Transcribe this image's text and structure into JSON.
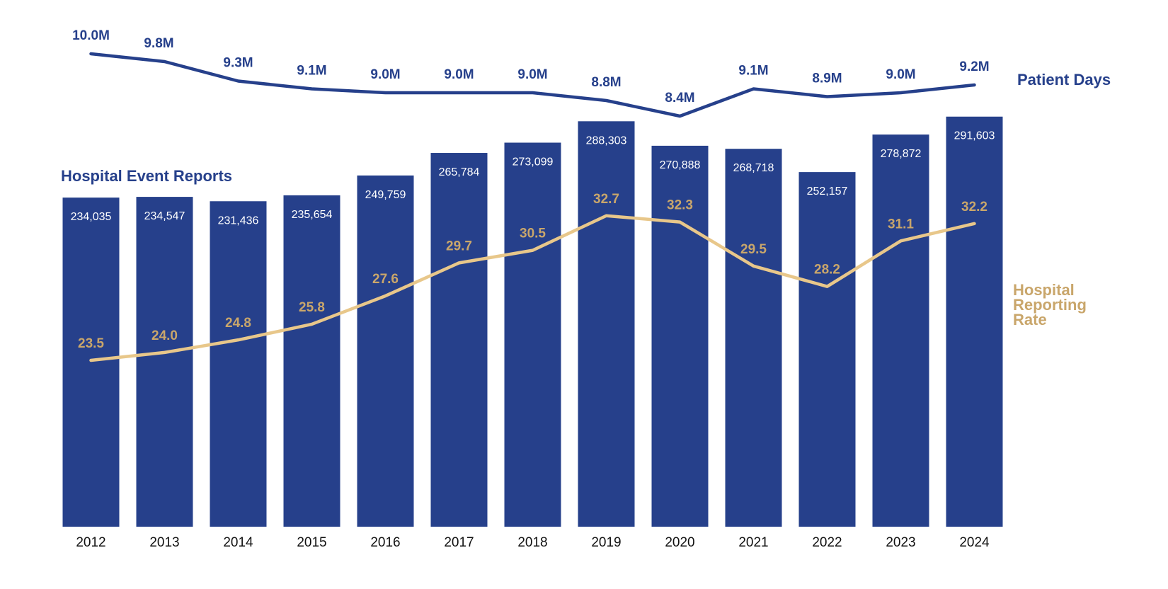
{
  "chart_data": {
    "type": "bar",
    "categories": [
      "2012",
      "2013",
      "2014",
      "2015",
      "2016",
      "2017",
      "2018",
      "2019",
      "2020",
      "2021",
      "2022",
      "2023",
      "2024"
    ],
    "series": [
      {
        "name": "Hospital Event Reports",
        "type": "bar",
        "values": [
          234035,
          234547,
          231436,
          235654,
          249759,
          265784,
          273099,
          288303,
          270888,
          268718,
          252157,
          278872,
          291603
        ],
        "labels": [
          "234,035",
          "234,547",
          "231,436",
          "235,654",
          "249,759",
          "265,784",
          "273,099",
          "288,303",
          "270,888",
          "268,718",
          "252,157",
          "278,872",
          "291,603"
        ],
        "color": "#26408b"
      },
      {
        "name": "Patient Days",
        "type": "line",
        "values": [
          10.0,
          9.8,
          9.3,
          9.1,
          9.0,
          9.0,
          9.0,
          8.8,
          8.4,
          9.1,
          8.9,
          9.0,
          9.2
        ],
        "labels": [
          "10.0M",
          "9.8M",
          "9.3M",
          "9.1M",
          "9.0M",
          "9.0M",
          "9.0M",
          "8.8M",
          "8.4M",
          "9.1M",
          "8.9M",
          "9.0M",
          "9.2M"
        ],
        "color": "#26408b"
      },
      {
        "name": "Hospital Reporting Rate",
        "name_lines": [
          "Hospital",
          "Reporting",
          "Rate"
        ],
        "type": "line",
        "values": [
          23.5,
          24.0,
          24.8,
          25.8,
          27.6,
          29.7,
          30.5,
          32.7,
          32.3,
          29.5,
          28.2,
          31.1,
          32.2
        ],
        "labels": [
          "23.5",
          "24.0",
          "24.8",
          "25.8",
          "27.6",
          "29.7",
          "30.5",
          "32.7",
          "32.3",
          "29.5",
          "28.2",
          "31.1",
          "32.2"
        ],
        "color": "#e8c78a",
        "label_color": "#c9a66b"
      }
    ],
    "xlabel": "",
    "ylabel": "",
    "legend": "inline-right",
    "grid": false
  }
}
